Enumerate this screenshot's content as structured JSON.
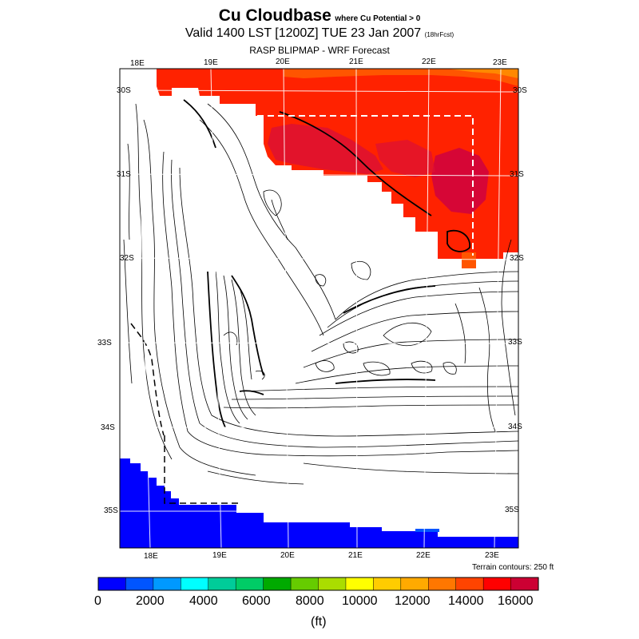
{
  "title": {
    "main": "Cu Cloudbase",
    "qualifier": "where Cu Potential > 0",
    "valid": "Valid 1400 LST [1200Z] TUE 23 Jan 2007",
    "forecast_hours": "(18hrFcst)",
    "source": "RASP BLIPMAP - WRF Forecast"
  },
  "axes": {
    "top_lon_labels": [
      "18E",
      "19E",
      "20E",
      "21E",
      "22E",
      "23E"
    ],
    "bottom_lon_labels": [
      "18E",
      "19E",
      "20E",
      "21E",
      "22E",
      "23E"
    ],
    "left_lat_labels": [
      "30S",
      "31S",
      "32S",
      "33S",
      "34S",
      "35S"
    ],
    "right_lat_labels": [
      "30S",
      "31S",
      "32S",
      "33S",
      "34S",
      "35S"
    ]
  },
  "terrain_note": "Terrain contours: 250 ft",
  "colorbar": {
    "unit": "(ft)",
    "tick_labels": [
      "0",
      "2000",
      "4000",
      "6000",
      "8000",
      "10000",
      "12000",
      "14000",
      "16000"
    ],
    "colors": [
      "#0000ff",
      "#0055ff",
      "#0099ff",
      "#00ffff",
      "#00cc99",
      "#00cc66",
      "#00aa00",
      "#66cc00",
      "#aadd00",
      "#ffff00",
      "#ffcc00",
      "#ffaa00",
      "#ff7700",
      "#ff4400",
      "#ff0000",
      "#cc0033"
    ]
  },
  "chart_data": {
    "type": "heatmap",
    "title": "Cu Cloudbase",
    "variable": "Cu cloudbase height",
    "units": "ft",
    "scale": {
      "min": 0,
      "max": 17000,
      "step": 1000
    },
    "lon_range_deg_E": [
      18,
      23
    ],
    "lat_range_deg_S": [
      30,
      35
    ],
    "regions": [
      {
        "area": "north / northeast",
        "approx_range_ft": [
          14000,
          17000
        ]
      },
      {
        "area": "southwest ocean",
        "approx_range_ft": [
          0,
          1000
        ]
      },
      {
        "area": "interior",
        "approx_range_ft": "no Cu (blank)"
      }
    ]
  }
}
